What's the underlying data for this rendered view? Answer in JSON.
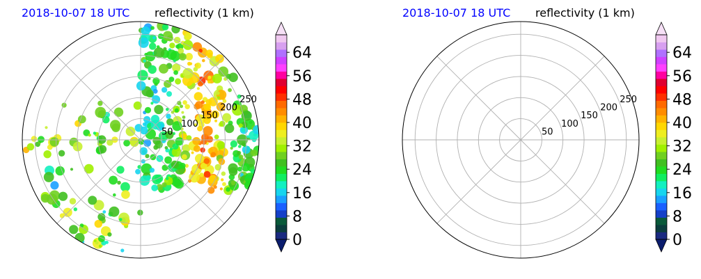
{
  "chart_data": [
    {
      "type": "heatmap",
      "projection": "polar",
      "title_left": "2018-10-07 18 UTC",
      "title_right": "reflectivity (1 km)",
      "radial_ticks": [
        "50",
        "100",
        "150",
        "200",
        "250"
      ],
      "radial_values": [
        50,
        100,
        150,
        200,
        250
      ],
      "rmax": 280,
      "spoke_angles_deg": [
        0,
        45,
        90,
        135,
        180,
        225,
        270,
        315
      ],
      "grid": true,
      "has_data": true,
      "colorbar": {
        "ticks": [
          "0",
          "8",
          "16",
          "24",
          "32",
          "40",
          "48",
          "56",
          "64"
        ],
        "vmin": 0,
        "vmax": 70,
        "step": 2.5,
        "extend": "both"
      }
    },
    {
      "type": "heatmap",
      "projection": "polar",
      "title_left": "2018-10-07 18 UTC",
      "title_right": "reflectivity (1 km)",
      "radial_ticks": [
        "50",
        "100",
        "150",
        "200",
        "250"
      ],
      "radial_values": [
        50,
        100,
        150,
        200,
        250
      ],
      "rmax": 280,
      "spoke_angles_deg": [
        0,
        45,
        90,
        135,
        180,
        225,
        270,
        315
      ],
      "grid": true,
      "has_data": false,
      "colorbar": {
        "ticks": [
          "0",
          "8",
          "16",
          "24",
          "32",
          "40",
          "48",
          "56",
          "64"
        ],
        "vmin": 0,
        "vmax": 70,
        "step": 2.5,
        "extend": "both"
      }
    }
  ],
  "colormap": [
    "#0b1d6e",
    "#1a2a80",
    "#0b3d3d",
    "#0a5a3a",
    "#1540c8",
    "#1a60ff",
    "#1aa0ff",
    "#17d5ee",
    "#12f0c0",
    "#10ee60",
    "#20dd20",
    "#40c020",
    "#70d020",
    "#a0f000",
    "#c8f030",
    "#eeee20",
    "#ffd700",
    "#ffb300",
    "#ff8c00",
    "#ff6a00",
    "#ff3000",
    "#ff0000",
    "#e00030",
    "#ff00a0",
    "#ff40ff",
    "#d040ff",
    "#b070ff",
    "#d8a0f0",
    "#f0c8f0",
    "#f6e0f6"
  ]
}
